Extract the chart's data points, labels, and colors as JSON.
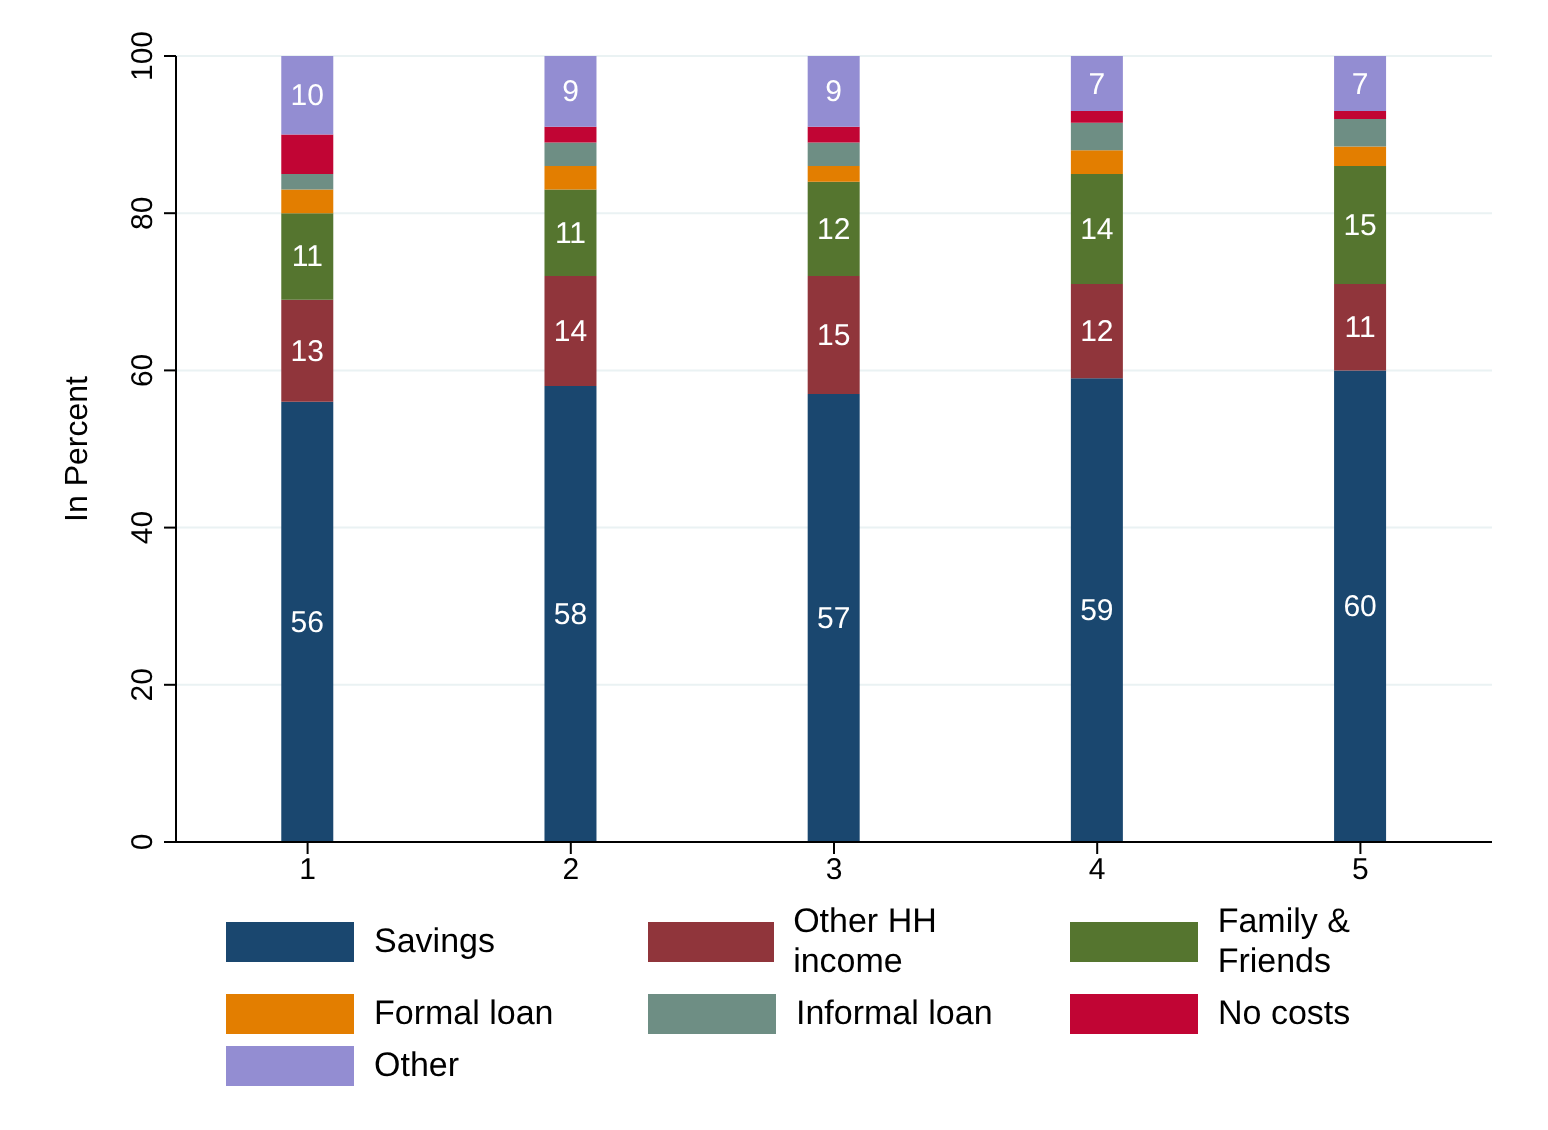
{
  "chart_data": {
    "type": "bar",
    "stacked": true,
    "ylabel": "In Percent",
    "categories": [
      "1",
      "2",
      "3",
      "4",
      "5"
    ],
    "series": [
      {
        "name": "Savings",
        "color": "#1a476f",
        "values": [
          56,
          58,
          57,
          59,
          60
        ],
        "value_labels": [
          "56",
          "58",
          "57",
          "59",
          "60"
        ]
      },
      {
        "name": "Other HH income",
        "color": "#90353b",
        "values": [
          13,
          14,
          15,
          12,
          11
        ],
        "value_labels": [
          "13",
          "14",
          "15",
          "12",
          "11"
        ]
      },
      {
        "name": "Family & Friends",
        "color": "#55752f",
        "values": [
          11,
          11,
          12,
          14,
          15
        ],
        "value_labels": [
          "11",
          "11",
          "12",
          "14",
          "15"
        ]
      },
      {
        "name": "Formal loan",
        "color": "#e37e00",
        "values": [
          3,
          3,
          2,
          3,
          2.5
        ]
      },
      {
        "name": "Informal loan",
        "color": "#6e8e84",
        "values": [
          2,
          3,
          3,
          3.5,
          3.5
        ]
      },
      {
        "name": "No costs",
        "color": "#c10534",
        "values": [
          5,
          2,
          2,
          1.5,
          1
        ]
      },
      {
        "name": "Other",
        "color": "#938dd2",
        "values": [
          10,
          9,
          9,
          7,
          7
        ],
        "value_labels": [
          "10",
          "9",
          "9",
          "7",
          "7"
        ]
      }
    ],
    "ylim": [
      0,
      100
    ],
    "yticks": [
      0,
      20,
      40,
      60,
      80,
      100
    ],
    "grid": "y",
    "legend": "bottom"
  }
}
